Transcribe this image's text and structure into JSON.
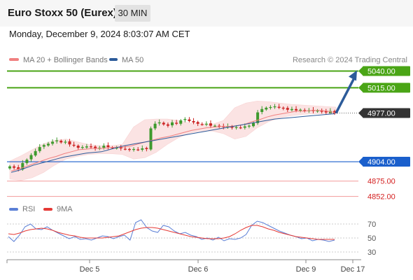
{
  "header": {
    "title": "Euro Stoxx 50 (Eurex)",
    "interval": "30 MIN",
    "datetime": "Monday, December 9, 2024 8:03:07 AM CET"
  },
  "legend": {
    "items": [
      {
        "label": "MA 20 + Bollinger Bands",
        "color": "#f08080"
      },
      {
        "label": "MA 50",
        "color": "#2c5b9a"
      }
    ],
    "credit": "Research © 2024 Trading Central"
  },
  "colors": {
    "resistance": "#4aa516",
    "support": "#1a5fcc",
    "support_minor": "#f4a6a6",
    "support_minor_text": "#d42020",
    "candle_up": "#3e9a2e",
    "candle_down": "#cc2222",
    "bollinger_fill": "#fbe3e3",
    "ma20": "#f08080",
    "ma50": "#2c5b9a",
    "rsi": "#5b7fd6",
    "rsi_ma": "#e53935",
    "arrow": "#2c5b9a"
  },
  "chart_data": [
    {
      "type": "candlestick",
      "title": "",
      "ylim": [
        4840,
        5050
      ],
      "levels": [
        {
          "value": 5040.0,
          "label": "5040.00",
          "kind": "resistance"
        },
        {
          "value": 5015.0,
          "label": "5015.00",
          "kind": "resistance"
        },
        {
          "value": 4977.0,
          "label": "4977.00",
          "kind": "last"
        },
        {
          "value": 4904.0,
          "label": "4904.00",
          "kind": "support"
        },
        {
          "value": 4875.0,
          "label": "4875.00",
          "kind": "support_minor"
        },
        {
          "value": 4852.0,
          "label": "4852.00",
          "kind": "support_minor"
        }
      ],
      "x_ticks": [
        "Dec 5",
        "Dec 6",
        "Dec 9",
        "Dec 17"
      ],
      "price": [
        4897,
        4895,
        4893,
        4902,
        4907,
        4914,
        4920,
        4926,
        4929,
        4931,
        4934,
        4936,
        4933,
        4934,
        4930,
        4928,
        4925,
        4926,
        4927,
        4926,
        4924,
        4925,
        4928,
        4926,
        4925,
        4925,
        4924,
        4923,
        4922,
        4923,
        4922,
        4924,
        4923,
        4954,
        4961,
        4963,
        4960,
        4958,
        4963,
        4961,
        4966,
        4968,
        4965,
        4963,
        4961,
        4960,
        4961,
        4958,
        4958,
        4957,
        4956,
        4957,
        4955,
        4956,
        4955,
        4957,
        4958,
        4962,
        4978,
        4983,
        4985,
        4986,
        4987,
        4985,
        4984,
        4982,
        4983,
        4981,
        4982,
        4980,
        4981,
        4980,
        4981,
        4979,
        4978,
        4980,
        4977
      ],
      "ma20": [
        4890,
        4893,
        4897,
        4901,
        4905,
        4909,
        4912,
        4916,
        4919,
        4922,
        4923,
        4924,
        4924,
        4925,
        4926,
        4926,
        4928,
        4931,
        4934,
        4937,
        4940,
        4942,
        4945,
        4948,
        4951,
        4953,
        4955,
        4956,
        4957,
        4957,
        4958,
        4960,
        4964,
        4967,
        4971,
        4974,
        4976,
        4978,
        4980,
        4980,
        4981,
        4981,
        4980,
        4978
      ],
      "ma50": [
        4888,
        4891,
        4895,
        4899,
        4902,
        4905,
        4908,
        4911,
        4913,
        4915,
        4917,
        4918,
        4919,
        4922,
        4925,
        4928,
        4930,
        4932,
        4934,
        4936,
        4938,
        4940,
        4942,
        4944,
        4946,
        4948,
        4950,
        4952,
        4954,
        4956,
        4958,
        4960,
        4962,
        4964,
        4966,
        4968,
        4969,
        4970,
        4971,
        4972,
        4973,
        4974,
        4975,
        4976
      ],
      "bands_upper": [
        4905,
        4913,
        4922,
        4931,
        4936,
        4938,
        4934,
        4930,
        4928,
        4928,
        4930,
        4956,
        4967,
        4968,
        4968,
        4966,
        4962,
        4961,
        4960,
        4966,
        4985,
        4992,
        4995,
        4994,
        4992,
        4990,
        4989,
        4988,
        4987,
        4986
      ],
      "bands_lower": [
        4878,
        4876,
        4880,
        4888,
        4899,
        4908,
        4912,
        4915,
        4916,
        4916,
        4915,
        4908,
        4910,
        4918,
        4930,
        4940,
        4947,
        4950,
        4950,
        4946,
        4938,
        4942,
        4955,
        4964,
        4970,
        4973,
        4975,
        4976,
        4976,
        4976
      ],
      "forecast_target": 5040.0
    },
    {
      "type": "line",
      "title": "",
      "legend": [
        "RSI",
        "9MA"
      ],
      "ylim": [
        20,
        80
      ],
      "y_ticks": [
        "70",
        "50",
        "30"
      ],
      "series": [
        {
          "name": "RSI",
          "values": [
            52,
            45,
            54,
            66,
            70,
            63,
            62,
            66,
            61,
            57,
            53,
            49,
            52,
            48,
            49,
            47,
            50,
            53,
            52,
            49,
            52,
            54,
            47,
            72,
            76,
            65,
            60,
            58,
            68,
            66,
            60,
            56,
            58,
            54,
            52,
            48,
            50,
            47,
            51,
            46,
            49,
            48,
            50,
            55,
            68,
            74,
            72,
            68,
            64,
            60,
            57,
            54,
            52,
            49,
            50,
            46,
            48,
            47,
            45,
            47
          ]
        },
        {
          "name": "9MA",
          "values": [
            56,
            55,
            57,
            60,
            62,
            63,
            64,
            63,
            61,
            58,
            56,
            54,
            53,
            51,
            50,
            50,
            50,
            50,
            51,
            52,
            53,
            56,
            59,
            62,
            64,
            65,
            65,
            64,
            62,
            60,
            58,
            56,
            54,
            52,
            51,
            50,
            49,
            49,
            49,
            50,
            52,
            56,
            61,
            65,
            68,
            68,
            66,
            63,
            61,
            58,
            56,
            54,
            52,
            51,
            50,
            49,
            48,
            48,
            48,
            48
          ]
        }
      ]
    }
  ]
}
